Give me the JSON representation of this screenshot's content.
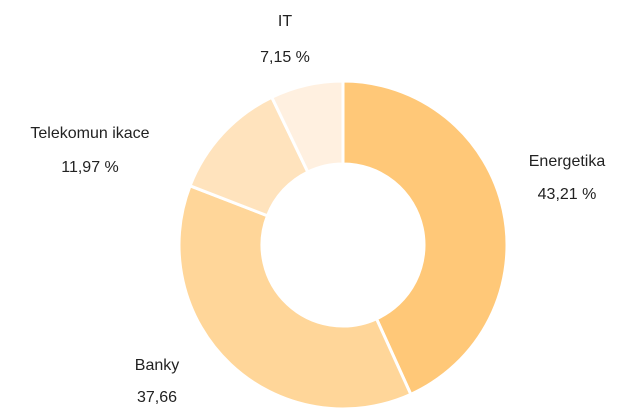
{
  "chart_data": {
    "type": "donut",
    "categories": [
      "Energetika",
      "Banky",
      "Telekomun ikace",
      "IT"
    ],
    "values": [
      43.21,
      37.66,
      11.97,
      7.15
    ],
    "value_labels": [
      "43,21 %",
      "37,66",
      "11,97 %",
      "7,15 %"
    ],
    "colors": [
      "#ffc878",
      "#ffd699",
      "#ffe3bd",
      "#fff0e0"
    ]
  }
}
